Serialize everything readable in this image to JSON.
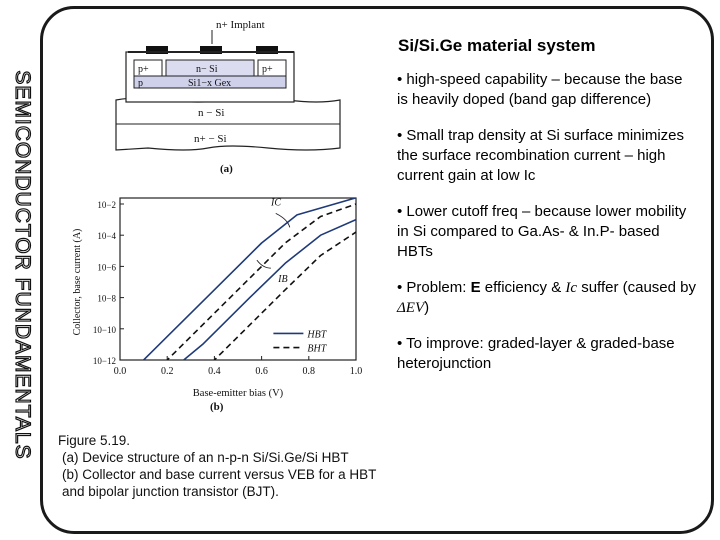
{
  "vertical_title": "SEMICONDUCTOR FUNDAMENTALS",
  "slide_title": "Si/Si.Ge material system",
  "bullets": {
    "b1": "• high-speed capability – because the base is heavily doped (band gap difference)",
    "b2": "• Small trap density at Si surface minimizes the surface recombination current – high current gain at low Ic",
    "b3": "• Lower cutoff freq – because lower mobility in Si compared to Ga.As- & In.P- based HBTs",
    "b4_pre": "• Problem: ",
    "b4_E": "E",
    "b4_mid": " efficiency & ",
    "b4_Ic": "Ic",
    "b4_post": " suffer (caused by ",
    "b4_dEv": "ΔEV",
    "b4_end": ")",
    "b5": "• To improve: graded-layer & graded-base heterojunction"
  },
  "diagram_a": {
    "implant_label": "n+ Implant",
    "layer_p1": "p+",
    "layer_nsi_top": "n− Si",
    "layer_p2": "p+",
    "layer_p3": "p",
    "layer_sige": "Si1−x Gex",
    "layer_nsi": "n − Si",
    "layer_nplus": "n+ − Si",
    "label": "(a)"
  },
  "chart_data": {
    "type": "line",
    "xlabel": "Base-emitter bias  (V)",
    "ylabel": "Collector, base current (A)",
    "x_ticks": [
      "0.0",
      "0.2",
      "0.4",
      "0.6",
      "0.8",
      "1.0"
    ],
    "y_ticks": [
      "10−2",
      "10−4",
      "10−6",
      "10−8",
      "10−10",
      "10−12"
    ],
    "xlim": [
      0,
      1.0
    ],
    "ylim_log10": [
      -12,
      -2
    ],
    "annotations": [
      "IC",
      "IB"
    ],
    "legend": [
      "HBT",
      "BHT"
    ],
    "label": "(b)",
    "series": [
      {
        "name": "HBT",
        "style": "solid",
        "curve": "IC",
        "x": [
          0.0,
          0.2,
          0.4,
          0.6,
          0.75,
          1.0
        ],
        "log10_y": [
          -13.5,
          -10.5,
          -7.5,
          -4.5,
          -2.7,
          -1.6
        ]
      },
      {
        "name": "BHT",
        "style": "dashed",
        "curve": "IC",
        "x": [
          0.1,
          0.3,
          0.5,
          0.7,
          0.85,
          1.0
        ],
        "log10_y": [
          -13.5,
          -10.5,
          -7.5,
          -4.5,
          -2.8,
          -2.0
        ]
      },
      {
        "name": "HBT",
        "style": "solid",
        "curve": "IB",
        "x": [
          0.15,
          0.35,
          0.55,
          0.7,
          0.85,
          1.0
        ],
        "log10_y": [
          -13.5,
          -11.0,
          -8.0,
          -5.8,
          -4.0,
          -3.0
        ]
      },
      {
        "name": "BHT",
        "style": "dashed",
        "curve": "IB",
        "x": [
          0.3,
          0.5,
          0.7,
          0.85,
          1.0
        ],
        "log10_y": [
          -13.5,
          -10.5,
          -7.5,
          -5.3,
          -3.8
        ]
      }
    ]
  },
  "caption": {
    "line1": "Figure 5.19.",
    "line2": "(a) Device structure of an n-p-n Si/Si.Ge/Si HBT",
    "line3": "(b) Collector and base current versus VEB for a HBT",
    "line4": "and bipolar junction transistor (BJT)."
  }
}
